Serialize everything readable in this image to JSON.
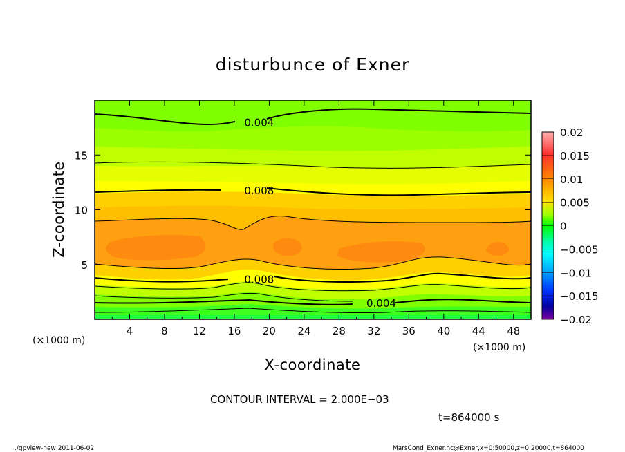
{
  "chart_data": {
    "type": "contour",
    "title": "disturbunce of Exner",
    "xlabel": "X-coordinate",
    "ylabel": "Z-coordinate",
    "x_unit": "(×1000 m)",
    "y_unit": "(×1000 m)",
    "xlim": [
      0,
      50
    ],
    "ylim": [
      0,
      20
    ],
    "x_ticks": [
      "4",
      "8",
      "12",
      "16",
      "20",
      "24",
      "28",
      "32",
      "36",
      "40",
      "44",
      "48"
    ],
    "x_tick_values": [
      4,
      8,
      12,
      16,
      20,
      24,
      28,
      32,
      36,
      40,
      44,
      48
    ],
    "y_ticks": [
      "5",
      "10",
      "15"
    ],
    "y_tick_values": [
      5,
      10,
      15
    ],
    "colorbar": {
      "ticks": [
        "0.02",
        "0.015",
        "0.01",
        "0.005",
        "0",
        "−0.005",
        "−0.01",
        "−0.015",
        "−0.02"
      ],
      "tick_values": [
        0.02,
        0.015,
        0.01,
        0.005,
        0,
        -0.005,
        -0.01,
        -0.015,
        -0.02
      ],
      "range": [
        -0.02,
        0.02
      ]
    },
    "contour_interval": "CONTOUR INTERVAL = 2.000E−03",
    "contour_labels": [
      {
        "text": "0.004",
        "x": 17.5,
        "z": 18.0
      },
      {
        "text": "0.008",
        "x": 17.5,
        "z": 11.8
      },
      {
        "text": "0.008",
        "x": 17.5,
        "z": 3.7
      },
      {
        "text": "0.004",
        "x": 31.5,
        "z": 1.5
      }
    ],
    "contour_levels": [
      0.002,
      0.004,
      0.006,
      0.008,
      0.01
    ],
    "field_description": "Exner disturbance approx 0.001 at surface, peak ~0.011 near z=6-7, decreasing to ~0.003 at z=20",
    "time_label": "t=864000 s"
  },
  "footer": {
    "left": "./gpview-new   2011-06-02",
    "right": "MarsCond_Exner.nc@Exner,x=0:50000,z=0:20000,t=864000"
  },
  "colors": {
    "contour_line": "#000000",
    "fill_0_002": "#00ff3f",
    "fill_002_004": "#7fff00",
    "fill_004_006": "#bfff00",
    "fill_006_008": "#ffff00",
    "fill_008_010": "#ffbf00",
    "fill_010_012": "#ff9f00",
    "fill_012_014": "#ff7f10"
  }
}
